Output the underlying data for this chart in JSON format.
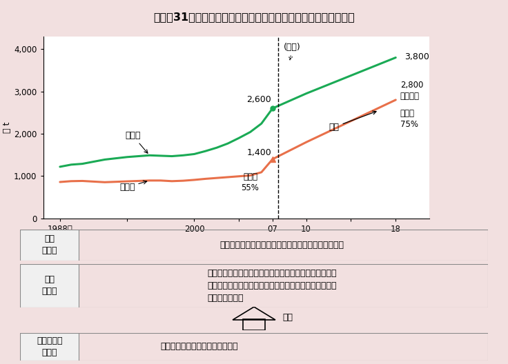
{
  "title": "図１－31　アフリカにおける米生産の推移と倍増イニシアティブ",
  "ylabel": "万 t",
  "consumption_x": [
    1988,
    1989,
    1990,
    1991,
    1992,
    1993,
    1994,
    1995,
    1996,
    1997,
    1998,
    1999,
    2000,
    2001,
    2002,
    2003,
    2004,
    2005,
    2006,
    2007,
    2010,
    2018
  ],
  "consumption_y": [
    1220,
    1270,
    1290,
    1340,
    1390,
    1420,
    1450,
    1470,
    1490,
    1480,
    1470,
    1490,
    1520,
    1590,
    1670,
    1770,
    1900,
    2040,
    2240,
    2600,
    2950,
    3800
  ],
  "production_x": [
    1988,
    1989,
    1990,
    1991,
    1992,
    1993,
    1994,
    1995,
    1996,
    1997,
    1998,
    1999,
    2000,
    2001,
    2002,
    2003,
    2004,
    2005,
    2006,
    2007,
    2010,
    2018
  ],
  "production_y": [
    860,
    880,
    885,
    870,
    855,
    865,
    875,
    885,
    895,
    895,
    880,
    890,
    910,
    935,
    955,
    975,
    995,
    1015,
    1090,
    1400,
    1800,
    2800
  ],
  "consumption_color": "#1aaa55",
  "production_color": "#e8704a",
  "bg_color": "#f2e0e0",
  "title_bg": "#f0a8a8",
  "table_label_bg": "#f0f0f0",
  "table_rows": [
    {
      "label": "支援\n対象国",
      "content": "米増産可能性等を考慮して、サブサハラ諸国から選定"
    },
    {
      "label": "支援\nの内容",
      "content": "国際協力機構や国際農林水産業研究センターを中心に、\nアフリカ稲センター等と連携し、品種改良・種子生産、\nかんがい整備等"
    }
  ],
  "renraku_label": "連携",
  "bottom_label": "農林水産省\nの取組",
  "bottom_content": "研究開発、技術開発、人材育成等"
}
